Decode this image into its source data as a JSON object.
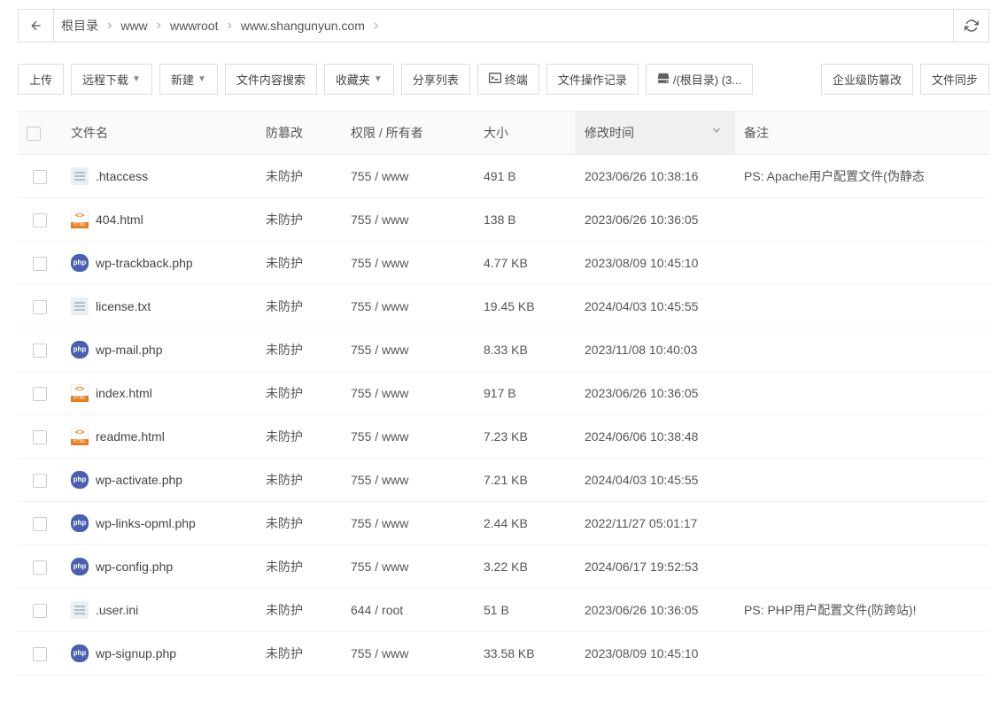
{
  "breadcrumb": {
    "items": [
      "根目录",
      "www",
      "wwwroot",
      "www.shangunyun.com"
    ]
  },
  "toolbar": {
    "upload": "上传",
    "remote_download": "远程下载",
    "new": "新建",
    "content_search": "文件内容搜索",
    "favorites": "收藏夹",
    "share_list": "分享列表",
    "terminal": "终端",
    "op_log": "文件操作记录",
    "root_disk": "/(根目录) (3...",
    "enterprise_tamper": "企业级防篡改",
    "file_sync": "文件同步"
  },
  "columns": {
    "name": "文件名",
    "protect": "防篡改",
    "perm": "权限 / 所有者",
    "size": "大小",
    "mtime": "修改时间",
    "remark": "备注"
  },
  "rows": [
    {
      "icon": "txt",
      "name": ".htaccess",
      "protect": "未防护",
      "perm": "755 / www",
      "size": "491 B",
      "mtime": "2023/06/26 10:38:16",
      "remark": "PS: Apache用户配置文件(伪静态"
    },
    {
      "icon": "html",
      "name": "404.html",
      "protect": "未防护",
      "perm": "755 / www",
      "size": "138 B",
      "mtime": "2023/06/26 10:36:05",
      "remark": ""
    },
    {
      "icon": "php",
      "name": "wp-trackback.php",
      "protect": "未防护",
      "perm": "755 / www",
      "size": "4.77 KB",
      "mtime": "2023/08/09 10:45:10",
      "remark": ""
    },
    {
      "icon": "txt",
      "name": "license.txt",
      "protect": "未防护",
      "perm": "755 / www",
      "size": "19.45 KB",
      "mtime": "2024/04/03 10:45:55",
      "remark": ""
    },
    {
      "icon": "php",
      "name": "wp-mail.php",
      "protect": "未防护",
      "perm": "755 / www",
      "size": "8.33 KB",
      "mtime": "2023/11/08 10:40:03",
      "remark": ""
    },
    {
      "icon": "html",
      "name": "index.html",
      "protect": "未防护",
      "perm": "755 / www",
      "size": "917 B",
      "mtime": "2023/06/26 10:36:05",
      "remark": ""
    },
    {
      "icon": "html",
      "name": "readme.html",
      "protect": "未防护",
      "perm": "755 / www",
      "size": "7.23 KB",
      "mtime": "2024/06/06 10:38:48",
      "remark": ""
    },
    {
      "icon": "php",
      "name": "wp-activate.php",
      "protect": "未防护",
      "perm": "755 / www",
      "size": "7.21 KB",
      "mtime": "2024/04/03 10:45:55",
      "remark": ""
    },
    {
      "icon": "php",
      "name": "wp-links-opml.php",
      "protect": "未防护",
      "perm": "755 / www",
      "size": "2.44 KB",
      "mtime": "2022/11/27 05:01:17",
      "remark": ""
    },
    {
      "icon": "php",
      "name": "wp-config.php",
      "protect": "未防护",
      "perm": "755 / www",
      "size": "3.22 KB",
      "mtime": "2024/06/17 19:52:53",
      "remark": ""
    },
    {
      "icon": "txt",
      "name": ".user.ini",
      "protect": "未防护",
      "perm": "644 / root",
      "size": "51 B",
      "mtime": "2023/06/26 10:36:05",
      "remark": "PS: PHP用户配置文件(防跨站)!"
    },
    {
      "icon": "php",
      "name": "wp-signup.php",
      "protect": "未防护",
      "perm": "755 / www",
      "size": "33.58 KB",
      "mtime": "2023/08/09 10:45:10",
      "remark": ""
    }
  ],
  "style": {
    "border_color": "#dddddd",
    "header_bg": "#fafafa",
    "sorted_bg": "#f0f0f0",
    "text_color": "#555555",
    "row_border": "#f2f2f2"
  }
}
